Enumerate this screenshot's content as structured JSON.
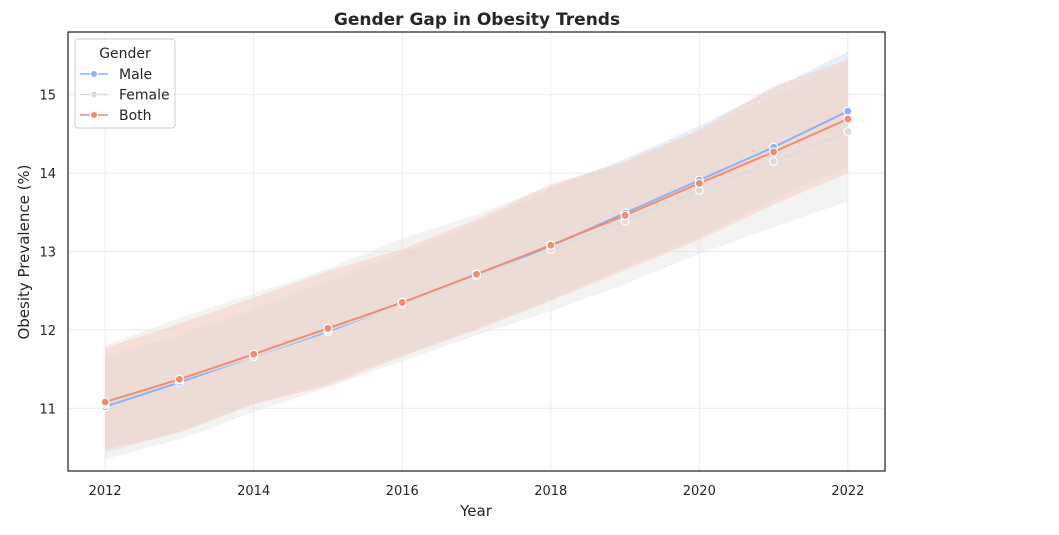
{
  "chart_data": {
    "type": "line",
    "title": "Gender Gap in Obesity Trends",
    "xlabel": "Year",
    "ylabel": "Obesity Prevalence (%)",
    "xlim": [
      2011.5,
      2022.5
    ],
    "ylim": [
      10.2,
      15.8
    ],
    "x_ticks": [
      2012,
      2014,
      2016,
      2018,
      2020,
      2022
    ],
    "y_ticks": [
      11,
      12,
      13,
      14,
      15
    ],
    "grid": true,
    "legend": {
      "title": "Gender",
      "placement": "top-left"
    },
    "x": [
      2012,
      2013,
      2014,
      2015,
      2016,
      2017,
      2018,
      2019,
      2020,
      2021,
      2022
    ],
    "series": [
      {
        "name": "Male",
        "color": "#8fb0f8",
        "band_color": "#c9d6f7",
        "values": [
          11.02,
          11.33,
          11.66,
          11.98,
          12.34,
          12.69,
          13.07,
          13.49,
          13.91,
          14.33,
          14.79
        ],
        "lower": [
          10.43,
          10.7,
          11.06,
          11.33,
          11.68,
          12.02,
          12.39,
          12.8,
          13.19,
          13.67,
          14.09
        ],
        "upper": [
          11.66,
          11.93,
          12.26,
          12.62,
          12.98,
          13.36,
          13.81,
          14.18,
          14.6,
          15.08,
          15.55
        ]
      },
      {
        "name": "Female",
        "color": "#dcdcdc",
        "band_color": "#e4e4e4",
        "values": [
          11.05,
          11.36,
          11.66,
          12.0,
          12.33,
          12.69,
          13.03,
          13.39,
          13.78,
          14.15,
          14.53
        ],
        "lower": [
          10.35,
          10.6,
          10.95,
          11.27,
          11.6,
          11.93,
          12.24,
          12.58,
          12.97,
          13.31,
          13.64
        ],
        "upper": [
          11.8,
          12.15,
          12.46,
          12.78,
          13.17,
          13.47,
          13.84,
          14.16,
          14.54,
          14.98,
          15.42
        ]
      },
      {
        "name": "Both",
        "color": "#f08c71",
        "band_color": "#f7c9b6",
        "values": [
          11.08,
          11.37,
          11.69,
          12.02,
          12.35,
          12.71,
          13.08,
          13.46,
          13.87,
          14.27,
          14.69
        ],
        "lower": [
          10.47,
          10.69,
          11.05,
          11.29,
          11.66,
          12.0,
          12.37,
          12.76,
          13.15,
          13.6,
          14.0
        ],
        "upper": [
          11.77,
          12.08,
          12.41,
          12.75,
          13.03,
          13.41,
          13.86,
          14.14,
          14.55,
          15.11,
          15.45
        ]
      }
    ]
  }
}
